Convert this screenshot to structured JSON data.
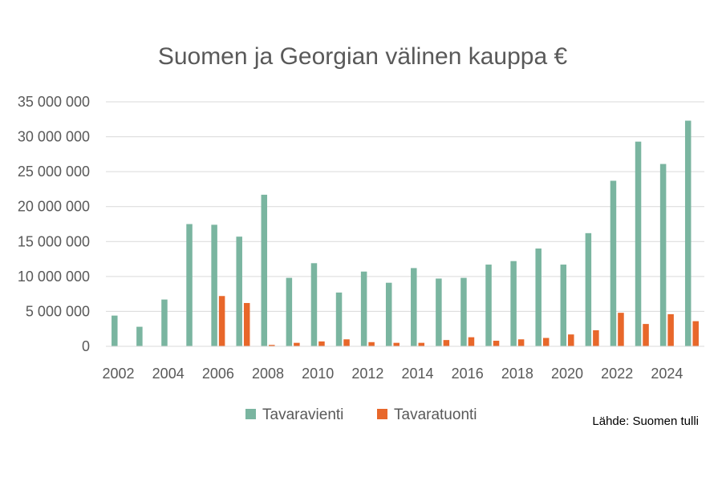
{
  "chart_data": {
    "type": "bar",
    "title": "Suomen ja Georgian välinen kauppa €",
    "source": "Lähde: Suomen tulli",
    "categories": [
      "2002",
      "2003",
      "2004",
      "2005",
      "2006",
      "2007",
      "2008",
      "2009",
      "2010",
      "2011",
      "2012",
      "2013",
      "2014",
      "2015",
      "2016",
      "2017",
      "2018",
      "2019",
      "2020",
      "2021",
      "2022",
      "2023",
      "2024",
      "2025"
    ],
    "x_tick_labels": [
      "2002",
      "2004",
      "2006",
      "2008",
      "2010",
      "2012",
      "2014",
      "2016",
      "2018",
      "2020",
      "2022",
      "2024"
    ],
    "y_tick_labels": [
      "0",
      "5 000 000",
      "10 000 000",
      "15 000 000",
      "20 000 000",
      "25 000 000",
      "30 000 000",
      "35 000 000"
    ],
    "ylim": [
      0,
      35000000
    ],
    "grid": true,
    "legend_position": "bottom",
    "series": [
      {
        "name": "Tavaravienti",
        "color": "#7ab5a0",
        "values": [
          4400000,
          2800000,
          6700000,
          17500000,
          17400000,
          15700000,
          21700000,
          9800000,
          11900000,
          7700000,
          10700000,
          9100000,
          11200000,
          9700000,
          9800000,
          11700000,
          12200000,
          14000000,
          11700000,
          16200000,
          23700000,
          29300000,
          26100000,
          32300000
        ]
      },
      {
        "name": "Tavaratuonti",
        "color": "#e8672a",
        "values": [
          0,
          0,
          0,
          0,
          7200000,
          6200000,
          200000,
          500000,
          700000,
          1000000,
          600000,
          500000,
          500000,
          900000,
          1300000,
          800000,
          1000000,
          1200000,
          1700000,
          2300000,
          4800000,
          3200000,
          4600000,
          3600000
        ]
      }
    ]
  }
}
